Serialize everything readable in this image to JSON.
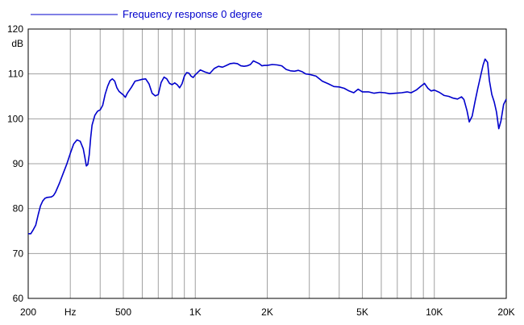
{
  "chart_data": {
    "type": "line",
    "legend": {
      "label": "Frequency response 0 degree",
      "placement": "top-left"
    },
    "x_scale": "log",
    "xlim": [
      200,
      20000
    ],
    "ylim": [
      60,
      120
    ],
    "y_unit": "dB",
    "x_unit": "Hz",
    "grid": true,
    "x_ticks": [
      {
        "value": 200,
        "label": "200"
      },
      {
        "value": 300,
        "label": "Hz"
      },
      {
        "value": 500,
        "label": "500"
      },
      {
        "value": 1000,
        "label": "1K"
      },
      {
        "value": 2000,
        "label": "2K"
      },
      {
        "value": 5000,
        "label": "5K"
      },
      {
        "value": 10000,
        "label": "10K"
      },
      {
        "value": 20000,
        "label": "20K"
      }
    ],
    "x_gridlines": [
      300,
      400,
      500,
      600,
      700,
      800,
      900,
      1000,
      2000,
      3000,
      4000,
      5000,
      6000,
      7000,
      8000,
      9000,
      10000
    ],
    "y_ticks": [
      60,
      70,
      80,
      90,
      100,
      110,
      120
    ],
    "series": [
      {
        "name": "Frequency response 0 degree",
        "color": "#0000cc",
        "points": [
          [
            200,
            74.4
          ],
          [
            205,
            74.4
          ],
          [
            210,
            75.3
          ],
          [
            215,
            76.3
          ],
          [
            220,
            78.6
          ],
          [
            225,
            80.6
          ],
          [
            230,
            81.7
          ],
          [
            235,
            82.3
          ],
          [
            240,
            82.5
          ],
          [
            250,
            82.6
          ],
          [
            255,
            82.9
          ],
          [
            260,
            83.6
          ],
          [
            270,
            85.6
          ],
          [
            280,
            87.8
          ],
          [
            290,
            89.9
          ],
          [
            300,
            92.3
          ],
          [
            310,
            94.4
          ],
          [
            320,
            95.3
          ],
          [
            330,
            95.0
          ],
          [
            340,
            93.3
          ],
          [
            345,
            91.5
          ],
          [
            350,
            89.5
          ],
          [
            355,
            89.8
          ],
          [
            360,
            92.0
          ],
          [
            365,
            95.8
          ],
          [
            370,
            98.6
          ],
          [
            380,
            100.8
          ],
          [
            390,
            101.7
          ],
          [
            400,
            102.0
          ],
          [
            410,
            103.0
          ],
          [
            420,
            105.5
          ],
          [
            430,
            107.3
          ],
          [
            440,
            108.5
          ],
          [
            450,
            108.9
          ],
          [
            460,
            108.4
          ],
          [
            470,
            106.9
          ],
          [
            480,
            106.1
          ],
          [
            500,
            105.3
          ],
          [
            510,
            104.8
          ],
          [
            520,
            105.7
          ],
          [
            540,
            107.0
          ],
          [
            560,
            108.4
          ],
          [
            580,
            108.6
          ],
          [
            600,
            108.8
          ],
          [
            620,
            108.9
          ],
          [
            640,
            107.8
          ],
          [
            660,
            105.7
          ],
          [
            680,
            105.1
          ],
          [
            700,
            105.4
          ],
          [
            720,
            108.1
          ],
          [
            740,
            109.3
          ],
          [
            760,
            108.9
          ],
          [
            780,
            107.9
          ],
          [
            800,
            107.6
          ],
          [
            820,
            108.0
          ],
          [
            840,
            107.6
          ],
          [
            860,
            106.9
          ],
          [
            880,
            107.8
          ],
          [
            900,
            109.5
          ],
          [
            920,
            110.3
          ],
          [
            940,
            110.2
          ],
          [
            960,
            109.5
          ],
          [
            980,
            109.2
          ],
          [
            1000,
            109.8
          ],
          [
            1050,
            110.9
          ],
          [
            1100,
            110.4
          ],
          [
            1150,
            110.1
          ],
          [
            1200,
            111.2
          ],
          [
            1250,
            111.7
          ],
          [
            1300,
            111.5
          ],
          [
            1350,
            111.9
          ],
          [
            1400,
            112.3
          ],
          [
            1450,
            112.4
          ],
          [
            1500,
            112.3
          ],
          [
            1550,
            111.8
          ],
          [
            1600,
            111.7
          ],
          [
            1650,
            111.8
          ],
          [
            1700,
            112.1
          ],
          [
            1750,
            112.9
          ],
          [
            1800,
            112.6
          ],
          [
            1850,
            112.3
          ],
          [
            1900,
            111.8
          ],
          [
            1950,
            111.9
          ],
          [
            2000,
            111.9
          ],
          [
            2100,
            112.1
          ],
          [
            2200,
            112.0
          ],
          [
            2300,
            111.8
          ],
          [
            2400,
            111.0
          ],
          [
            2500,
            110.7
          ],
          [
            2600,
            110.6
          ],
          [
            2700,
            110.8
          ],
          [
            2800,
            110.5
          ],
          [
            2900,
            110.0
          ],
          [
            3000,
            109.9
          ],
          [
            3200,
            109.5
          ],
          [
            3400,
            108.4
          ],
          [
            3600,
            107.8
          ],
          [
            3800,
            107.2
          ],
          [
            4000,
            107.1
          ],
          [
            4200,
            106.8
          ],
          [
            4400,
            106.2
          ],
          [
            4600,
            105.8
          ],
          [
            4800,
            106.6
          ],
          [
            5000,
            106.0
          ],
          [
            5300,
            106.0
          ],
          [
            5600,
            105.7
          ],
          [
            5900,
            105.9
          ],
          [
            6200,
            105.8
          ],
          [
            6500,
            105.6
          ],
          [
            6900,
            105.7
          ],
          [
            7300,
            105.8
          ],
          [
            7700,
            106.0
          ],
          [
            8000,
            105.8
          ],
          [
            8400,
            106.4
          ],
          [
            8800,
            107.3
          ],
          [
            9100,
            107.9
          ],
          [
            9400,
            106.8
          ],
          [
            9700,
            106.2
          ],
          [
            10000,
            106.4
          ],
          [
            10500,
            105.9
          ],
          [
            11000,
            105.2
          ],
          [
            11500,
            105.0
          ],
          [
            12000,
            104.6
          ],
          [
            12500,
            104.4
          ],
          [
            13000,
            104.9
          ],
          [
            13300,
            104.3
          ],
          [
            13700,
            101.8
          ],
          [
            14000,
            99.3
          ],
          [
            14400,
            100.6
          ],
          [
            14800,
            103.8
          ],
          [
            15200,
            106.8
          ],
          [
            15600,
            109.4
          ],
          [
            16000,
            112.0
          ],
          [
            16300,
            113.3
          ],
          [
            16700,
            112.6
          ],
          [
            17000,
            108.5
          ],
          [
            17400,
            105.4
          ],
          [
            17800,
            103.8
          ],
          [
            18200,
            101.5
          ],
          [
            18600,
            97.8
          ],
          [
            19000,
            99.5
          ],
          [
            19500,
            103.2
          ],
          [
            20000,
            104.4
          ]
        ]
      }
    ]
  }
}
